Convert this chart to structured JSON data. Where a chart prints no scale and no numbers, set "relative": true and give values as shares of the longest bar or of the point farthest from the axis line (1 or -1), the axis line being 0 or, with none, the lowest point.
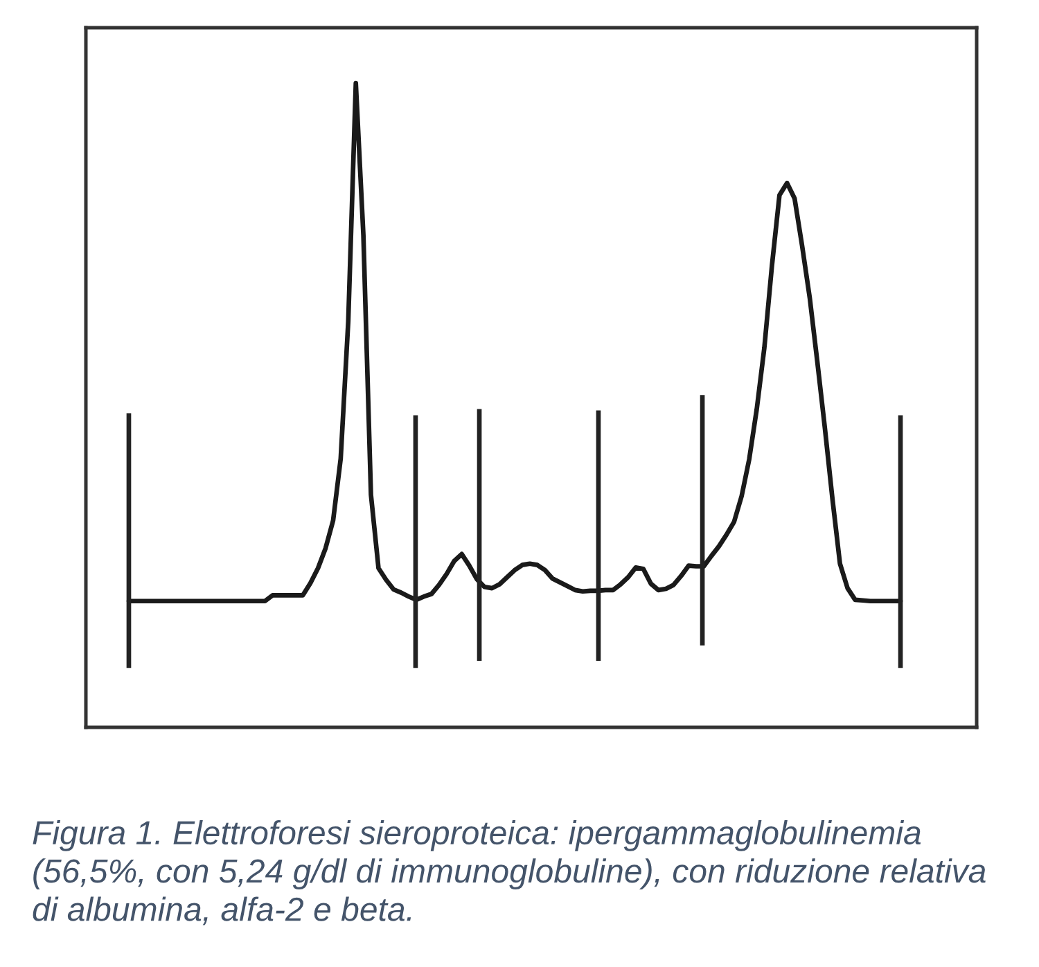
{
  "chart_data": {
    "type": "line",
    "relative": true,
    "tick_labels": false,
    "line_style": "solid",
    "categories": [
      null,
      null,
      null,
      null,
      null,
      null,
      null,
      null,
      null,
      null,
      null,
      null,
      null,
      null,
      null,
      null,
      null,
      null,
      null,
      null,
      null,
      null,
      null,
      null,
      null,
      null,
      null,
      null,
      null,
      null,
      null,
      null,
      null,
      null,
      null,
      null,
      null,
      null,
      null,
      null,
      null,
      null,
      null,
      null,
      null,
      null,
      null,
      null,
      null,
      null,
      null,
      null,
      null,
      null,
      null,
      null,
      null,
      null,
      null,
      null,
      null,
      null,
      null,
      null,
      null,
      null,
      null,
      null,
      null,
      null,
      null,
      null,
      null,
      null,
      null,
      null,
      null,
      null,
      null,
      null,
      null,
      null,
      null,
      null,
      null,
      null,
      null,
      null,
      null,
      null,
      null,
      null,
      null,
      null,
      null,
      null,
      null,
      null,
      null,
      null,
      null,
      null,
      null
    ],
    "series": [
      {
        "color": "#1a1a1a",
        "values": [
          0.196,
          0.196,
          0.196,
          0.196,
          0.196,
          0.196,
          0.196,
          0.196,
          0.196,
          0.196,
          0.196,
          0.196,
          0.196,
          0.196,
          0.196,
          0.196,
          0.196,
          0.196,
          0.196,
          0.205,
          0.205,
          0.205,
          0.205,
          0.205,
          0.224,
          0.247,
          0.278,
          0.321,
          0.417,
          0.63,
          1,
          0.764,
          0.361,
          0.247,
          0.229,
          0.214,
          0.209,
          0.203,
          0.198,
          0.203,
          0.207,
          0.221,
          0.238,
          0.258,
          0.269,
          0.251,
          0.23,
          0.218,
          0.216,
          0.222,
          0.233,
          0.244,
          0.252,
          0.254,
          0.252,
          0.244,
          0.231,
          0.225,
          0.219,
          0.213,
          0.211,
          0.212,
          0.212,
          0.213,
          0.213,
          0.222,
          0.233,
          0.248,
          0.246,
          0.223,
          0.213,
          0.215,
          0.221,
          0.235,
          0.251,
          0.25,
          0.25,
          0.266,
          0.281,
          0.299,
          0.319,
          0.359,
          0.416,
          0.494,
          0.589,
          0.716,
          0.826,
          0.845,
          0.821,
          0.747,
          0.667,
          0.568,
          0.465,
          0.355,
          0.254,
          0.216,
          0.198,
          0.197,
          0.196,
          0.196,
          0.196,
          0.196,
          0.196
        ]
      }
    ],
    "annotations": [
      "Figura 1. Elettroforesi sieroproteica: ipergammaglobulinemia (56,5%, con 5,24 g/dl di immunoglobuline), con riduzione relativa di albumina, alfa-2 e beta."
    ]
  }
}
